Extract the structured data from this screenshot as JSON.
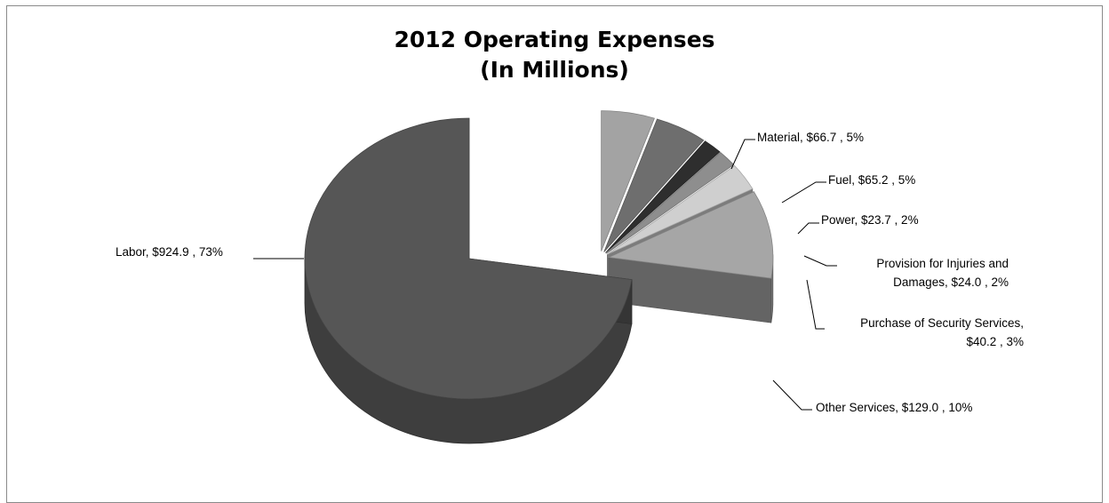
{
  "chart_data": {
    "type": "pie",
    "title": "2012 Operating Expenses",
    "subtitle": "(In Millions)",
    "slices": [
      {
        "name": "Labor",
        "value": 924.9,
        "percent": 73,
        "label_lines": [
          "Labor, $924.9 , 73%"
        ],
        "color": "#565656"
      },
      {
        "name": "Material",
        "value": 66.7,
        "percent": 5,
        "label_lines": [
          "Material, $66.7 , 5%"
        ],
        "color": "#a3a3a3"
      },
      {
        "name": "Fuel",
        "value": 65.2,
        "percent": 5,
        "label_lines": [
          "Fuel, $65.2 , 5%"
        ],
        "color": "#6e6e6e"
      },
      {
        "name": "Power",
        "value": 23.7,
        "percent": 2,
        "label_lines": [
          "Power, $23.7 , 2%"
        ],
        "color": "#2e2e2e"
      },
      {
        "name": "Provision for Injuries and Damages",
        "value": 24.0,
        "percent": 2,
        "label_lines": [
          "Provision for Injuries and",
          "Damages, $24.0 , 2%"
        ],
        "color": "#8e8e8e"
      },
      {
        "name": "Purchase of Security Services",
        "value": 40.2,
        "percent": 3,
        "label_lines": [
          "Purchase of Security Services,",
          "$40.2 , 3%"
        ],
        "color": "#cfcfcf"
      },
      {
        "name": "Other Services",
        "value": 129.0,
        "percent": 10,
        "label_lines": [
          "Other Services, $129.0 , 10%"
        ],
        "color": "#a6a6a6"
      }
    ],
    "legend": "none",
    "style": "3d-exploded"
  }
}
